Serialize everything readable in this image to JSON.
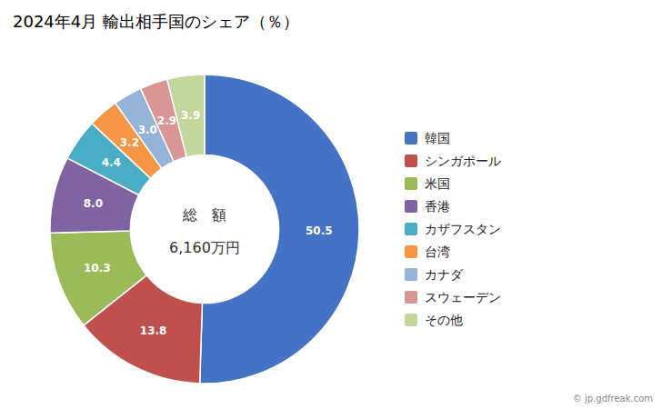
{
  "chart_data": {
    "type": "pie",
    "title": "2024年4月 輸出相手国のシェア（％）",
    "categories": [
      "韓国",
      "シンガポール",
      "米国",
      "香港",
      "カザフスタン",
      "台湾",
      "カナダ",
      "スウェーデン",
      "その他"
    ],
    "values": [
      50.5,
      13.8,
      10.3,
      8.0,
      4.4,
      3.2,
      3.0,
      2.9,
      3.9
    ],
    "value_labels": [
      "50.5",
      "13.8",
      "10.3",
      "8.0",
      "4.4",
      "3.2",
      "3.0",
      "2.9",
      "3.9"
    ],
    "colors": [
      "#4472C4",
      "#C0504D",
      "#9BBB59",
      "#8064A2",
      "#4BACC6",
      "#F79646",
      "#95B3D7",
      "#D99694",
      "#C3D69B"
    ],
    "data_labels": true,
    "legend": "right",
    "annotations": [
      "総　額",
      "6,160万円",
      "© jp.gdfreak.com"
    ]
  }
}
